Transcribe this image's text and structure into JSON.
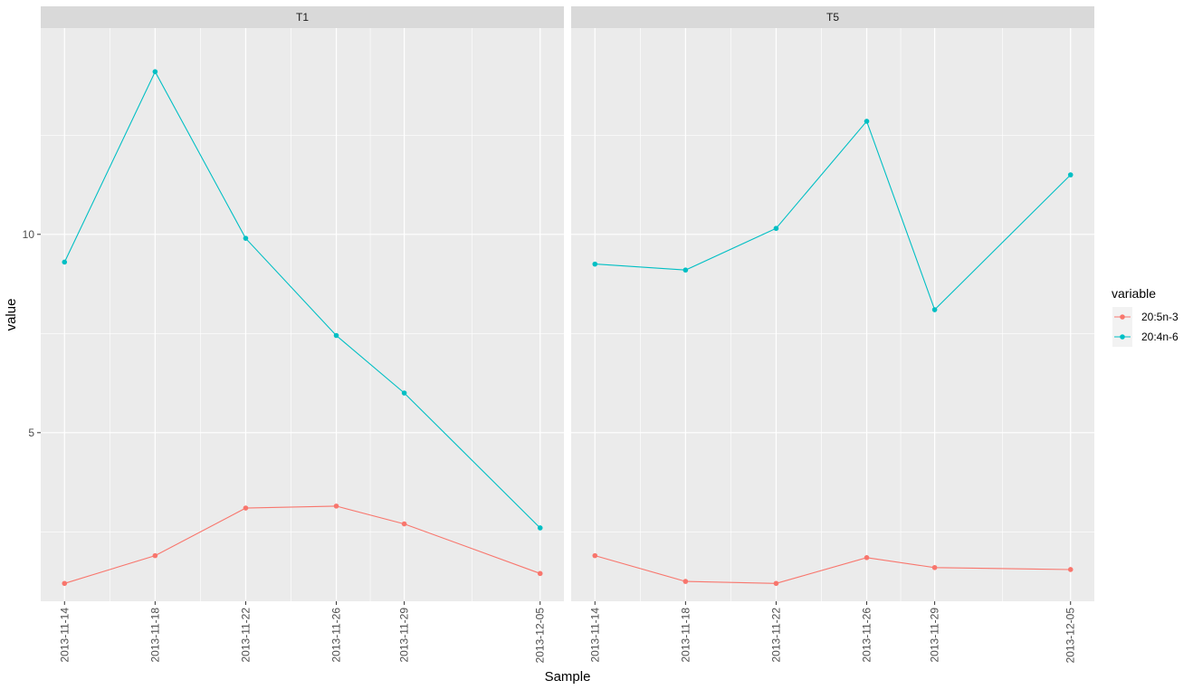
{
  "chart_data": {
    "type": "line",
    "markers": true,
    "xlabel": "Sample",
    "ylabel": "value",
    "ylim": [
      0.75,
      15.2
    ],
    "y_ticks": [
      5,
      10
    ],
    "y_tick_labels": [
      "5",
      "10"
    ],
    "grid": true,
    "legend": {
      "title": "variable",
      "position": "right"
    },
    "colors": {
      "20:5n-3": "#F8766D",
      "20:4n-6": "#00BFC4"
    },
    "panels": [
      {
        "name": "T1",
        "x": [
          "2013-11-14",
          "2013-11-18",
          "2013-11-22",
          "2013-11-26",
          "2013-11-29",
          "2013-12-05"
        ],
        "series": [
          {
            "name": "20:5n-3",
            "values": [
              1.2,
              1.9,
              3.1,
              3.15,
              2.7,
              1.45
            ]
          },
          {
            "name": "20:4n-6",
            "values": [
              9.3,
              14.1,
              9.9,
              7.45,
              6.0,
              2.6
            ]
          }
        ]
      },
      {
        "name": "T5",
        "x": [
          "2013-11-14",
          "2013-11-18",
          "2013-11-22",
          "2013-11-26",
          "2013-11-29",
          "2013-12-05"
        ],
        "series": [
          {
            "name": "20:5n-3",
            "values": [
              1.9,
              1.25,
              1.2,
              1.85,
              1.6,
              1.55
            ]
          },
          {
            "name": "20:4n-6",
            "values": [
              9.25,
              9.1,
              10.15,
              12.85,
              8.1,
              11.5
            ]
          }
        ]
      }
    ]
  }
}
